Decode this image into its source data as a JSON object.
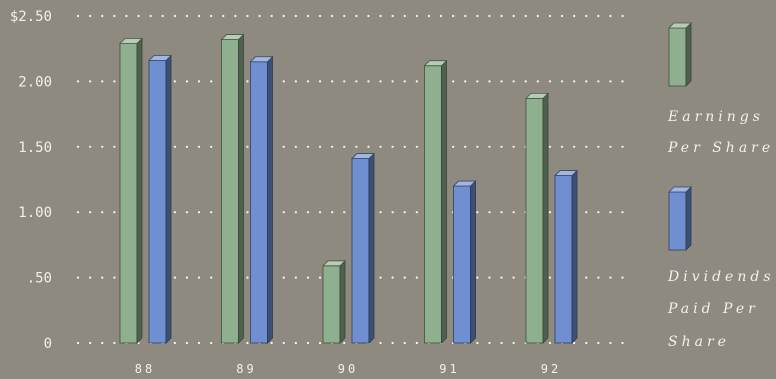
{
  "chart_data": {
    "type": "bar",
    "categories": [
      "88",
      "89",
      "90",
      "91",
      "92"
    ],
    "series": [
      {
        "name": "Earnings Per Share",
        "legend_lines": [
          "Earnings",
          "Per Share"
        ],
        "color": "#8fb08e",
        "values": [
          2.29,
          2.32,
          0.59,
          2.12,
          1.87
        ]
      },
      {
        "name": "Dividends Paid Per Share",
        "legend_lines": [
          "Dividends",
          "Paid Per",
          "Share"
        ],
        "color": "#6f8fd0",
        "values": [
          2.16,
          2.15,
          1.41,
          1.2,
          1.28
        ]
      }
    ],
    "yticks": [
      {
        "value": 2.5,
        "label": "$2.50"
      },
      {
        "value": 2.0,
        "label": "2.00"
      },
      {
        "value": 1.5,
        "label": "1.50"
      },
      {
        "value": 1.0,
        "label": "1.00"
      },
      {
        "value": 0.5,
        "label": ".50"
      },
      {
        "value": 0,
        "label": "0"
      }
    ],
    "ylim": [
      0,
      2.5
    ],
    "grid": true,
    "grid_style": "dotted",
    "legend_position": "right",
    "title": "",
    "xlabel": "",
    "ylabel": ""
  }
}
